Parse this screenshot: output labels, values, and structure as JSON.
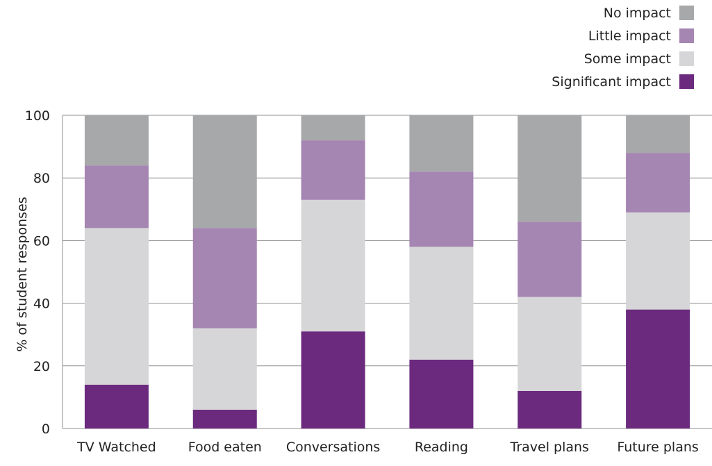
{
  "chart_data": {
    "type": "bar",
    "stacked": true,
    "title": "",
    "xlabel": "",
    "ylabel": "% of student responses",
    "ylim": [
      0,
      100
    ],
    "yticks": [
      0,
      20,
      40,
      60,
      80,
      100
    ],
    "grid": "horizontal",
    "legend_position": "top-right",
    "categories": [
      "TV Watched",
      "Food eaten",
      "Conversations",
      "Reading",
      "Travel plans",
      "Future plans"
    ],
    "series": [
      {
        "name": "Significant impact",
        "color": "#6b2a7e",
        "values": [
          14,
          6,
          31,
          22,
          12,
          38
        ]
      },
      {
        "name": "Some impact",
        "color": "#d6d6d8",
        "values": [
          50,
          26,
          42,
          36,
          30,
          31
        ]
      },
      {
        "name": "Little impact",
        "color": "#a585b2",
        "values": [
          20,
          32,
          19,
          24,
          24,
          19
        ]
      },
      {
        "name": "No impact",
        "color": "#a7a8aa",
        "values": [
          16,
          36,
          8,
          18,
          34,
          12
        ]
      }
    ],
    "legend_order": [
      "No impact",
      "Little impact",
      "Some impact",
      "Significant impact"
    ]
  }
}
